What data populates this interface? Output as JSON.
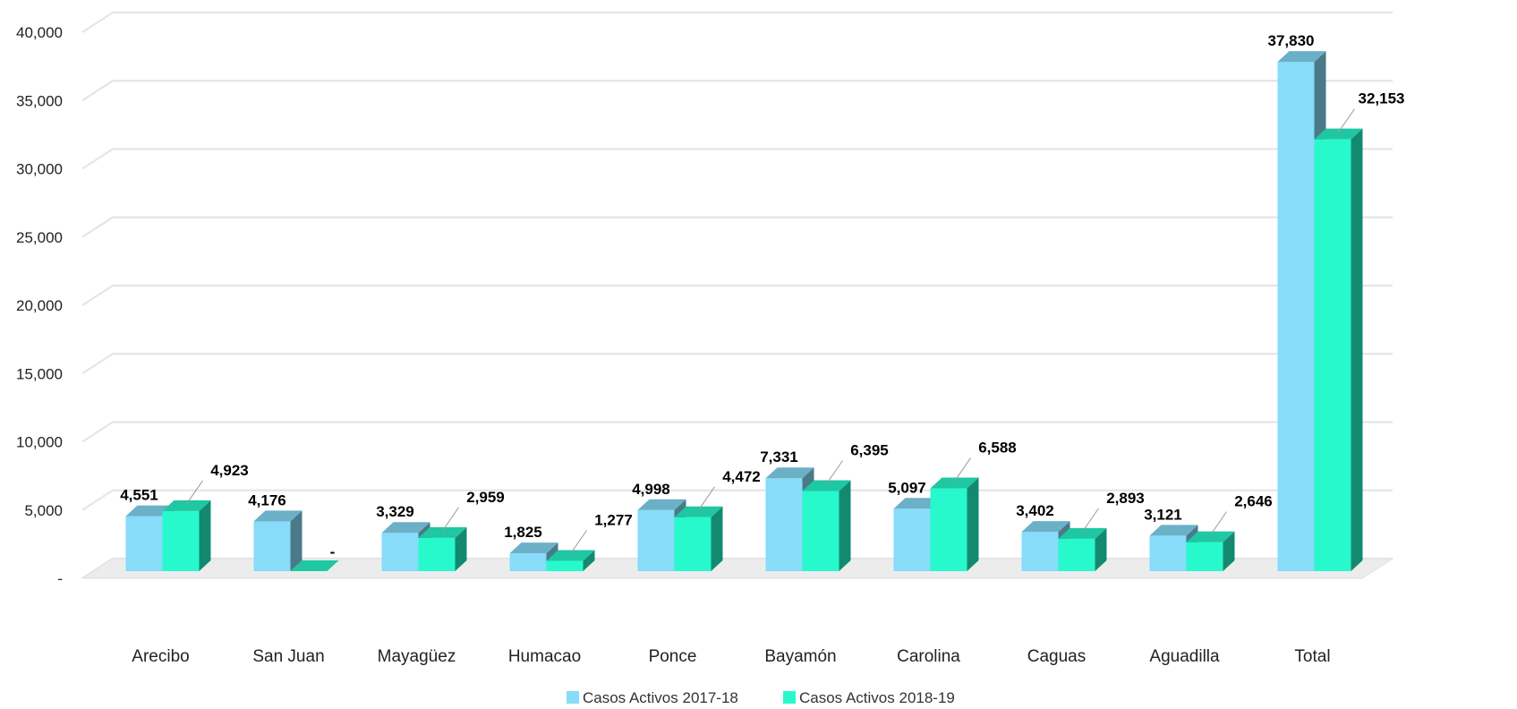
{
  "chart_data": {
    "type": "bar",
    "categories": [
      "Arecibo",
      "San Juan",
      "Mayagüez",
      "Humacao",
      "Ponce",
      "Bayamón",
      "Carolina",
      "Caguas",
      "Aguadilla",
      "Total"
    ],
    "series": [
      {
        "name": "Casos Activos 2017-18",
        "color": "#86DCF9",
        "values": [
          4551,
          4176,
          3329,
          1825,
          4998,
          7331,
          5097,
          3402,
          3121,
          37830
        ],
        "labels": [
          "4,551",
          "4,176",
          "3,329",
          "1,825",
          "4,998",
          "7,331",
          "5,097",
          "3,402",
          "3,121",
          "37,830"
        ]
      },
      {
        "name": "Casos Activos 2018-19",
        "color": "#27F9CC",
        "values": [
          4923,
          0,
          2959,
          1277,
          4472,
          6395,
          6588,
          2893,
          2646,
          32153
        ],
        "labels": [
          "4,923",
          "-",
          "2,959",
          "1,277",
          "4,472",
          "6,395",
          "6,588",
          "2,893",
          "2,646",
          "32,153"
        ]
      }
    ],
    "yticks": [
      "-",
      "5,000",
      "10,000",
      "15,000",
      "20,000",
      "25,000",
      "30,000",
      "35,000",
      "40,000"
    ],
    "ytick_values": [
      0,
      5000,
      10000,
      15000,
      20000,
      25000,
      30000,
      35000,
      40000
    ],
    "ylim": [
      0,
      40000
    ],
    "legend_position": "bottom",
    "grid": true,
    "three_d": true
  }
}
